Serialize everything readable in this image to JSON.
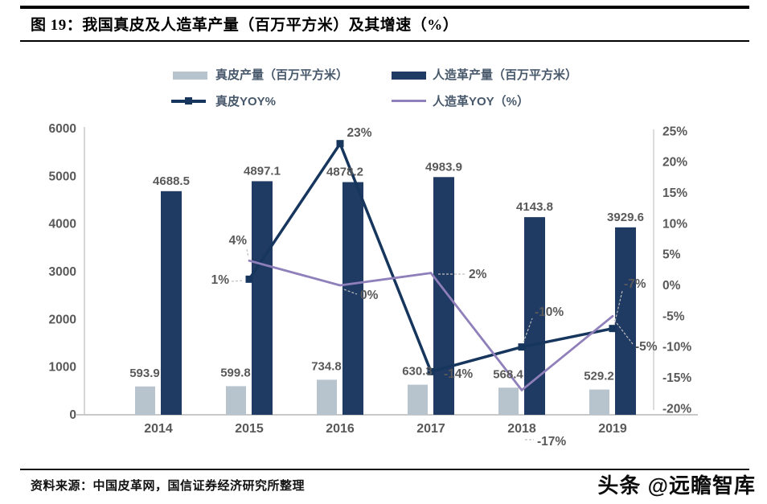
{
  "title": "图 19：我国真皮及人造革产量（百万平方米）及其增速（%）",
  "source": "资料来源：中国皮革网，国信证券经济研究所整理",
  "watermark": "头条 @远瞻智库",
  "colors": {
    "genuine_bar": "#b7c3cd",
    "artificial_bar": "#1f3a63",
    "genuine_yoy_line": "#17365d",
    "artificial_yoy_line": "#8f7fba",
    "axis_text": "#595959",
    "legend_text": "#47586b",
    "axis_line": "#c9c9c9",
    "leader_line": "#bfbfbf"
  },
  "chart_data": {
    "type": "bar+line combo",
    "title": "我国真皮及人造革产量（百万平方米）及其增速（%）",
    "categories": [
      "2014",
      "2015",
      "2016",
      "2017",
      "2018",
      "2019"
    ],
    "grid": false,
    "legend_position": "top",
    "left_axis": {
      "min": 0,
      "max": 6000,
      "step": 1000,
      "ticks": [
        "6000",
        "5000",
        "4000",
        "3000",
        "2000",
        "1000",
        "0"
      ]
    },
    "right_axis": {
      "min": -20,
      "max": 25,
      "step": 5,
      "ticks": [
        "25%",
        "20%",
        "15%",
        "10%",
        "5%",
        "0%",
        "-5%",
        "-10%",
        "-15%",
        "-20%"
      ]
    },
    "series": [
      {
        "name": "真皮产量（百万平方米）",
        "type": "bar",
        "axis": "left",
        "color": "#b7c3cd",
        "values": [
          593.9,
          599.8,
          734.8,
          630.3,
          568.4,
          529.2
        ],
        "labels": [
          "593.9",
          "599.8",
          "734.8",
          "630.3",
          "568.4",
          "529.2"
        ]
      },
      {
        "name": "人造革产量（百万平方米）",
        "type": "bar",
        "axis": "left",
        "color": "#1f3a63",
        "values": [
          4688.5,
          4897.1,
          4878.2,
          4983.9,
          4143.8,
          3929.6
        ],
        "labels": [
          "4688.5",
          "4897.1",
          "4878.2",
          "4983.9",
          "4143.8",
          "3929.6"
        ]
      },
      {
        "name": "真皮YOY%",
        "type": "line",
        "axis": "right",
        "color": "#17365d",
        "marker": "square",
        "values": [
          null,
          1,
          23,
          -14,
          -10,
          -7
        ],
        "labels": [
          null,
          "1%",
          "23%",
          "-14%",
          "-10%",
          "-7%"
        ]
      },
      {
        "name": "人造革YOY（%）",
        "type": "line",
        "axis": "right",
        "color": "#8f7fba",
        "marker": "none",
        "values": [
          null,
          4,
          0,
          2,
          -17,
          -5
        ],
        "labels": [
          null,
          "4%",
          "0%",
          "2%",
          "-17%",
          "-5%"
        ]
      }
    ]
  }
}
